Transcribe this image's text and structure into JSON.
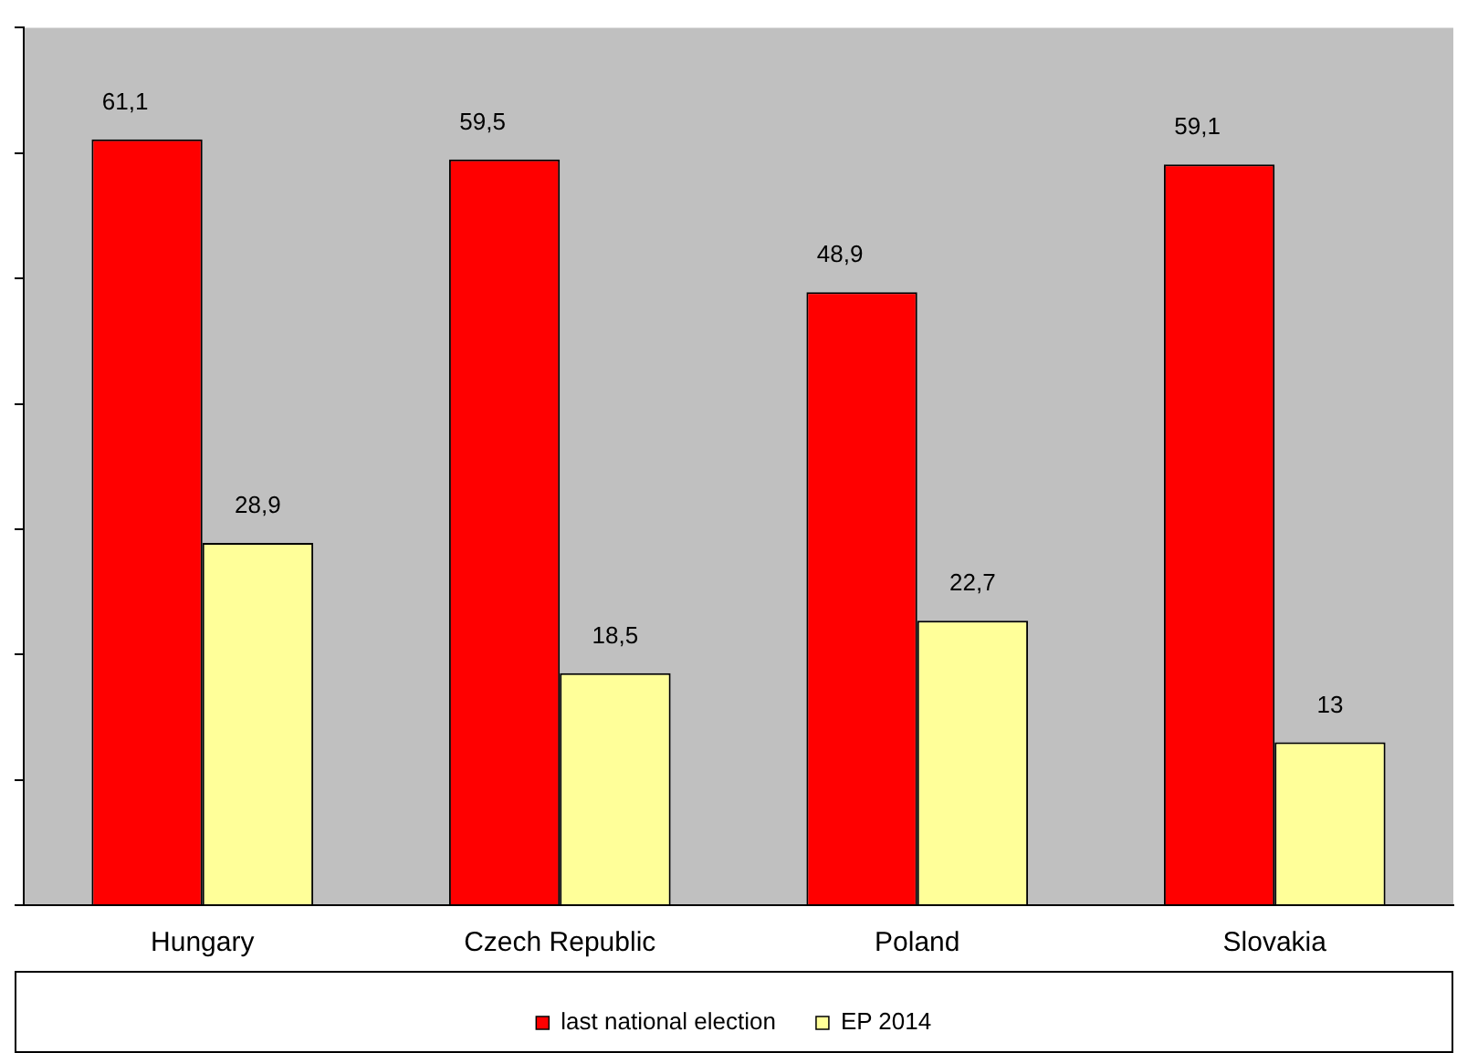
{
  "chart_data": {
    "type": "bar",
    "categories": [
      "Hungary",
      "Czech Republic",
      "Poland",
      "Slovakia"
    ],
    "series": [
      {
        "name": "last national election",
        "color": "#ff0000",
        "values": [
          61.1,
          59.5,
          48.9,
          59.1
        ],
        "value_labels": [
          "61,1",
          "59,5",
          "48,9",
          "59,1"
        ]
      },
      {
        "name": "EP 2014",
        "color": "#ffff99",
        "values": [
          28.9,
          18.5,
          22.7,
          13
        ],
        "value_labels": [
          "28,9",
          "18,5",
          "22,7",
          "13"
        ]
      }
    ],
    "ylim": [
      0,
      70
    ],
    "yticks": [
      {
        "value": 0,
        "label": null
      },
      {
        "value": 10,
        "label": null
      },
      {
        "value": 20,
        "label": null
      },
      {
        "value": 30,
        "label": null
      },
      {
        "value": 40,
        "label": null
      },
      {
        "value": 50,
        "label": null
      },
      {
        "value": 60,
        "label": null
      },
      {
        "value": 70,
        "label": null
      }
    ],
    "tick_labels": "x",
    "grid": false,
    "legend": "bottom"
  }
}
